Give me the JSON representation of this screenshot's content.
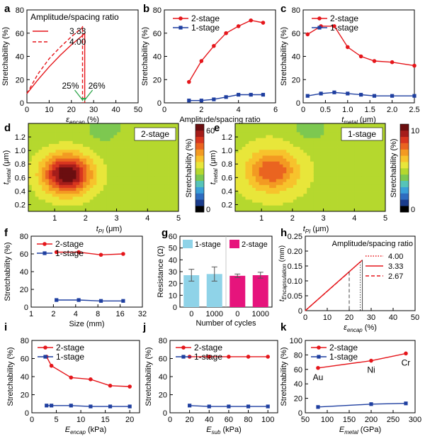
{
  "colors": {
    "two_stage": "#e5161b",
    "one_stage": "#1f3fa0",
    "bar_one": "#8fd3e8",
    "bar_two": "#e6147c",
    "annot": "#2da44a"
  },
  "chart_data": [
    {
      "panel": "a",
      "type": "line",
      "xlabel": "ε_encap (%)",
      "xlabel_main": "ε",
      "xlabel_sub": "encap",
      "xlabel_unit": " (%)",
      "ylabel": "Stretchability (%)",
      "xlim": [
        0,
        50
      ],
      "ylim": [
        0,
        80
      ],
      "xticks": [
        0,
        10,
        20,
        30,
        40,
        50
      ],
      "yticks": [
        0,
        20,
        40,
        60,
        80
      ],
      "legend_title": "Amplitude/spacing ratio",
      "series": [
        {
          "name": "3.33",
          "style": "solid",
          "x": [
            0,
            5,
            10,
            15,
            20,
            25,
            26,
            26
          ],
          "y": [
            8,
            20,
            31,
            41,
            50,
            58,
            60,
            0
          ]
        },
        {
          "name": "4.00",
          "style": "dashed",
          "x": [
            0,
            5,
            10,
            15,
            20,
            25,
            25,
            25
          ],
          "y": [
            8,
            25,
            38,
            48,
            57,
            65,
            66,
            0
          ]
        }
      ],
      "annotations": [
        {
          "text": "25%",
          "x": 25
        },
        {
          "text": "26%",
          "x": 26
        }
      ]
    },
    {
      "panel": "b",
      "type": "line",
      "xlabel": "Amplitude/spacing ratio",
      "ylabel": "Stretchability (%)",
      "xlim": [
        0,
        6
      ],
      "ylim": [
        0,
        80
      ],
      "xticks": [
        0,
        2,
        4,
        6
      ],
      "yticks": [
        0,
        20,
        40,
        60,
        80
      ],
      "series": [
        {
          "name": "2-stage",
          "x": [
            1.33,
            2,
            2.67,
            3.33,
            4,
            4.67,
            5.33
          ],
          "y": [
            18,
            36,
            49,
            60,
            66,
            71,
            69
          ]
        },
        {
          "name": "1-stage",
          "x": [
            1.33,
            2,
            2.67,
            3.33,
            4,
            4.67,
            5.33
          ],
          "y": [
            2,
            2,
            3,
            5,
            7,
            7,
            7
          ]
        }
      ]
    },
    {
      "panel": "c",
      "type": "line",
      "xlabel": "t_metal (μm)",
      "xlabel_main": "t",
      "xlabel_sub": "metal",
      "xlabel_unit": " (μm)",
      "ylabel": "Stretchability (%)",
      "xlim": [
        0,
        2.5
      ],
      "ylim": [
        0,
        80
      ],
      "xticks": [
        0,
        0.5,
        1.0,
        1.5,
        2.0,
        2.5
      ],
      "xticklabels": [
        "0",
        "0.5",
        "1.0",
        "1.5",
        "2.0",
        "2.5"
      ],
      "yticks": [
        0,
        20,
        40,
        60,
        80
      ],
      "series": [
        {
          "name": "2-stage",
          "x": [
            0.1,
            0.4,
            0.7,
            1.0,
            1.3,
            1.6,
            2.0,
            2.5
          ],
          "y": [
            59,
            66,
            66,
            48,
            40,
            36,
            35,
            32
          ]
        },
        {
          "name": "1-stage",
          "x": [
            0.1,
            0.4,
            0.7,
            1.0,
            1.3,
            1.6,
            2.0,
            2.5
          ],
          "y": [
            6,
            8,
            9,
            8,
            7,
            6,
            6,
            6
          ]
        }
      ]
    },
    {
      "panel": "d",
      "type": "heatmap",
      "label": "2-stage",
      "xlabel": "t_PI (μm)",
      "ylabel": "t_metal (μm)",
      "xlim": [
        0.15,
        5
      ],
      "ylim": [
        0.1,
        1.4
      ],
      "xticks": [
        1,
        2,
        3,
        4,
        5
      ],
      "yticks": [
        0.2,
        0.4,
        0.6,
        0.8,
        1.0,
        1.2
      ],
      "yticklabels": [
        "0.2",
        "0.4",
        "0.6",
        "0.8",
        "1.0",
        "1.2"
      ],
      "colorbar_label": "Stretchability (%)",
      "colorbar_ticks": [
        "0",
        "60"
      ],
      "vmax": 70,
      "field": {
        "base": 33,
        "peaks": [
          {
            "x": 1.4,
            "y": 0.65,
            "amp": 38,
            "sx": 0.75,
            "sy": 0.28
          },
          {
            "x": 2.6,
            "y": 1.35,
            "amp": -6,
            "sx": 0.6,
            "sy": 0.25
          }
        ]
      }
    },
    {
      "panel": "e",
      "type": "heatmap",
      "label": "1-stage",
      "xlabel": "t_PI (μm)",
      "ylabel": "t_metal (μm)",
      "xlim": [
        0.15,
        5
      ],
      "ylim": [
        0.1,
        1.4
      ],
      "xticks": [
        1,
        2,
        3,
        4,
        5
      ],
      "yticks": [
        0.2,
        0.4,
        0.6,
        0.8,
        1.0,
        1.2
      ],
      "yticklabels": [
        "0.2",
        "0.4",
        "0.6",
        "0.8",
        "1.0",
        "1.2"
      ],
      "colorbar_label": "Stretchability (%)",
      "colorbar_ticks": [
        "0",
        "10"
      ],
      "vmax": 12,
      "field": {
        "base": 5.8,
        "peaks": [
          {
            "x": 1.35,
            "y": 0.7,
            "amp": 3.6,
            "sx": 0.8,
            "sy": 0.3
          },
          {
            "x": 2.6,
            "y": 1.35,
            "amp": -1.2,
            "sx": 0.6,
            "sy": 0.25
          }
        ]
      }
    },
    {
      "panel": "f",
      "type": "line",
      "xlabel": "Size (mm)",
      "ylabel": "Stretchability (%)",
      "xscale": "log2",
      "xlim": [
        1,
        32
      ],
      "ylim": [
        0,
        80
      ],
      "xticks": [
        1,
        2,
        4,
        8,
        16,
        32
      ],
      "yticks": [
        0,
        20,
        40,
        60,
        80
      ],
      "series": [
        {
          "name": "2-stage",
          "x": [
            2.2,
            4.4,
            8.8,
            17.6
          ],
          "y": [
            62,
            62,
            59,
            60
          ]
        },
        {
          "name": "1-stage",
          "x": [
            2.2,
            4.4,
            8.8,
            17.6
          ],
          "y": [
            8,
            8,
            7,
            7
          ]
        }
      ]
    },
    {
      "panel": "g",
      "type": "bar",
      "xlabel": "Number of cycles",
      "ylabel": "Resistance (Ω)",
      "ylim": [
        0,
        60
      ],
      "yticks": [
        0,
        10,
        20,
        30,
        40,
        50,
        60
      ],
      "groups": [
        {
          "name": "1-stage",
          "categories": [
            "0",
            "1000"
          ],
          "values": [
            27,
            28
          ],
          "errors": [
            5,
            6
          ]
        },
        {
          "name": "2-stage",
          "categories": [
            "0",
            "1000"
          ],
          "values": [
            26.5,
            27
          ],
          "errors": [
            1.5,
            2.5
          ]
        }
      ]
    },
    {
      "panel": "h",
      "type": "line",
      "xlabel": "ε_encap (%)",
      "xlabel_main": "ε",
      "xlabel_sub": "encap",
      "xlabel_unit": " (%)",
      "ylabel": "t_Encapsulation (mm)",
      "ylabel_main": "t",
      "ylabel_sub": "Encapsulation",
      "ylabel_unit": " (mm)",
      "xlim": [
        0,
        50
      ],
      "ylim": [
        0,
        0.25
      ],
      "xticks": [
        0,
        10,
        20,
        30,
        40,
        50
      ],
      "yticks": [
        0,
        0.05,
        0.1,
        0.15,
        0.2,
        0.25
      ],
      "yticklabels": [
        "0",
        "0.05",
        "0.10",
        "0.15",
        "0.20",
        "0.25"
      ],
      "legend_title": "Amplitude/spacing ratio",
      "series": [
        {
          "name": "4.00",
          "style": "dotted",
          "x": [
            0,
            25,
            25
          ],
          "y": [
            0,
            0.163,
            0
          ]
        },
        {
          "name": "3.33",
          "style": "solid",
          "x": [
            0,
            26,
            26
          ],
          "y": [
            0,
            0.17,
            0
          ]
        },
        {
          "name": "2.67",
          "style": "dashed",
          "x": [
            0,
            20,
            20
          ],
          "y": [
            0,
            0.13,
            0
          ]
        }
      ]
    },
    {
      "panel": "i",
      "type": "line",
      "xlabel": "E_encap (kPa)",
      "xlabel_main": "E",
      "xlabel_sub": "encap",
      "xlabel_unit": " (kPa)",
      "ylabel": "Stretchability (%)",
      "xlim": [
        0,
        22
      ],
      "ylim": [
        0,
        80
      ],
      "xticks": [
        0,
        5,
        10,
        15,
        20
      ],
      "yticks": [
        0,
        20,
        40,
        60,
        80
      ],
      "series": [
        {
          "name": "2-stage",
          "x": [
            3,
            4,
            8,
            12,
            16,
            20
          ],
          "y": [
            62,
            52,
            39,
            37,
            30,
            29
          ]
        },
        {
          "name": "1-stage",
          "x": [
            3,
            4,
            8,
            12,
            16,
            20
          ],
          "y": [
            8,
            8,
            8,
            7,
            7,
            7
          ]
        }
      ]
    },
    {
      "panel": "j",
      "type": "line",
      "xlabel": "E_sub (kPa)",
      "xlabel_main": "E",
      "xlabel_sub": "sub",
      "xlabel_unit": " (kPa)",
      "ylabel": "Stretchability (%)",
      "xlim": [
        0,
        110
      ],
      "ylim": [
        0,
        80
      ],
      "xticks": [
        0,
        20,
        40,
        60,
        80,
        100
      ],
      "yticks": [
        0,
        20,
        40,
        60,
        80
      ],
      "series": [
        {
          "name": "2-stage",
          "x": [
            20,
            40,
            60,
            80,
            100
          ],
          "y": [
            62,
            62,
            62,
            62,
            62
          ]
        },
        {
          "name": "1-stage",
          "x": [
            20,
            40,
            60,
            80,
            100
          ],
          "y": [
            8,
            7,
            7,
            7,
            7
          ]
        }
      ]
    },
    {
      "panel": "k",
      "type": "line",
      "xlabel": "E_metal (GPa)",
      "xlabel_main": "E",
      "xlabel_sub": "metal",
      "xlabel_unit": " (GPa)",
      "ylabel": "Stretchability (%)",
      "xlim": [
        50,
        300
      ],
      "ylim": [
        0,
        100
      ],
      "xticks": [
        50,
        100,
        150,
        200,
        250,
        300
      ],
      "yticks": [
        0,
        20,
        40,
        60,
        80,
        100
      ],
      "series": [
        {
          "name": "2-stage",
          "x": [
            79,
            200,
            279
          ],
          "y": [
            62,
            72,
            82
          ],
          "point_labels": [
            "Au",
            "Ni",
            "Cr"
          ]
        },
        {
          "name": "1-stage",
          "x": [
            79,
            200,
            279
          ],
          "y": [
            8,
            12,
            13
          ]
        }
      ]
    }
  ]
}
